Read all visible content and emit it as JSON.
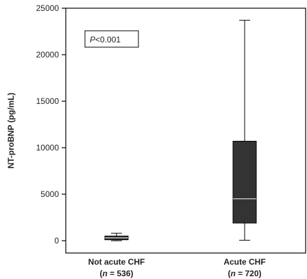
{
  "chart_data": {
    "type": "box",
    "ylabel": "NT-proBNP (pg/mL)",
    "ylim": [
      0,
      25000
    ],
    "yticks": [
      0,
      5000,
      10000,
      15000,
      20000,
      25000
    ],
    "annotation": {
      "p_label": "P",
      "p_text": "<0.001"
    },
    "groups": [
      {
        "name": "Not acute CHF",
        "n_label": "n",
        "n_text": "= 536)",
        "whisker_low": 0,
        "q1": 100,
        "median": 300,
        "q3": 500,
        "whisker_high": 800
      },
      {
        "name": "Acute CHF",
        "n_label": "n",
        "n_text": "= 720)",
        "whisker_low": 50,
        "q1": 1900,
        "median": 4500,
        "q3": 10700,
        "whisker_high": 23700
      }
    ],
    "colors": {
      "box": "#333333",
      "median_line": "#ffffff",
      "axis": "#000000"
    },
    "grid": false
  }
}
